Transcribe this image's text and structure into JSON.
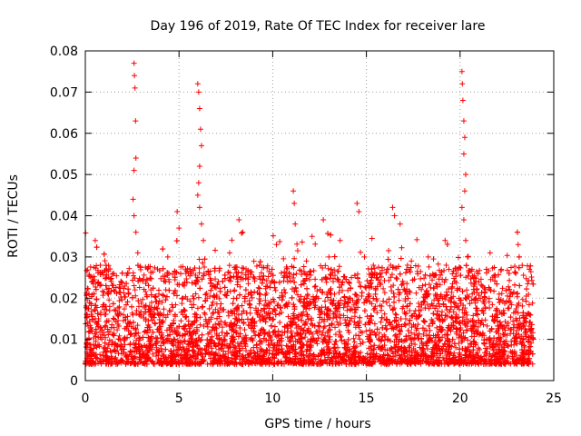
{
  "chart_data": {
    "type": "scatter",
    "title": "Day 196 of 2019, Rate Of TEC Index for receiver lare",
    "xlabel": "GPS time / hours",
    "ylabel": "ROTI / TECUs",
    "xlim": [
      0,
      25
    ],
    "ylim": [
      0,
      0.08
    ],
    "xticks": [
      0,
      5,
      10,
      15,
      20,
      25
    ],
    "yticks": [
      0,
      0.01,
      0.02,
      0.03,
      0.04,
      0.05,
      0.06,
      0.07,
      0.08
    ],
    "xtick_labels": [
      "0",
      "5",
      "10",
      "15",
      "20",
      "25"
    ],
    "ytick_labels": [
      "0",
      "0.01",
      "0.02",
      "0.03",
      "0.04",
      "0.05",
      "0.06",
      "0.07",
      "0.08"
    ],
    "grid": true,
    "marker": "+",
    "color": "#ff0000",
    "series": [
      {
        "name": "ROTI",
        "description_of_density": "dense band between ~0.004 and ~0.03 over 0–24 h",
        "points": [
          [
            0.1,
            0.008
          ],
          [
            0.2,
            0.021
          ],
          [
            0.3,
            0.012
          ],
          [
            0.5,
            0.006
          ],
          [
            0.7,
            0.015
          ],
          [
            0.8,
            0.028
          ],
          [
            1.0,
            0.011
          ],
          [
            1.3,
            0.018
          ],
          [
            1.6,
            0.007
          ],
          [
            1.9,
            0.024
          ],
          [
            2.2,
            0.013
          ],
          [
            2.4,
            0.009
          ],
          [
            2.6,
            0.077
          ],
          [
            2.62,
            0.074
          ],
          [
            2.65,
            0.071
          ],
          [
            2.68,
            0.063
          ],
          [
            2.7,
            0.054
          ],
          [
            2.6,
            0.051
          ],
          [
            2.55,
            0.044
          ],
          [
            2.6,
            0.04
          ],
          [
            2.7,
            0.036
          ],
          [
            2.8,
            0.031
          ],
          [
            2.9,
            0.016
          ],
          [
            3.2,
            0.012
          ],
          [
            3.5,
            0.022
          ],
          [
            3.8,
            0.008
          ],
          [
            4.1,
            0.019
          ],
          [
            4.4,
            0.03
          ],
          [
            4.7,
            0.014
          ],
          [
            4.9,
            0.041
          ],
          [
            5.0,
            0.037
          ],
          [
            5.2,
            0.011
          ],
          [
            5.5,
            0.026
          ],
          [
            5.8,
            0.009
          ],
          [
            6.0,
            0.072
          ],
          [
            6.05,
            0.07
          ],
          [
            6.1,
            0.066
          ],
          [
            6.15,
            0.061
          ],
          [
            6.2,
            0.057
          ],
          [
            6.1,
            0.052
          ],
          [
            6.05,
            0.048
          ],
          [
            6.0,
            0.045
          ],
          [
            6.1,
            0.042
          ],
          [
            6.2,
            0.038
          ],
          [
            6.3,
            0.034
          ],
          [
            6.5,
            0.02
          ],
          [
            6.8,
            0.013
          ],
          [
            7.1,
            0.024
          ],
          [
            7.4,
            0.01
          ],
          [
            7.7,
            0.031
          ],
          [
            7.9,
            0.017
          ],
          [
            8.2,
            0.039
          ],
          [
            8.4,
            0.036
          ],
          [
            8.7,
            0.021
          ],
          [
            9.0,
            0.012
          ],
          [
            9.3,
            0.028
          ],
          [
            9.6,
            0.007
          ],
          [
            9.9,
            0.019
          ],
          [
            10.2,
            0.033
          ],
          [
            10.5,
            0.011
          ],
          [
            10.8,
            0.024
          ],
          [
            11.1,
            0.046
          ],
          [
            11.15,
            0.043
          ],
          [
            11.2,
            0.038
          ],
          [
            11.5,
            0.016
          ],
          [
            11.8,
            0.029
          ],
          [
            12.1,
            0.035
          ],
          [
            12.4,
            0.012
          ],
          [
            12.7,
            0.039
          ],
          [
            13.0,
            0.03
          ],
          [
            13.3,
            0.021
          ],
          [
            13.6,
            0.034
          ],
          [
            13.9,
            0.009
          ],
          [
            14.2,
            0.025
          ],
          [
            14.5,
            0.043
          ],
          [
            14.6,
            0.041
          ],
          [
            14.9,
            0.03
          ],
          [
            15.2,
            0.014
          ],
          [
            15.5,
            0.022
          ],
          [
            15.8,
            0.008
          ],
          [
            16.1,
            0.027
          ],
          [
            16.4,
            0.042
          ],
          [
            16.5,
            0.04
          ],
          [
            16.8,
            0.038
          ],
          [
            17.1,
            0.015
          ],
          [
            17.4,
            0.029
          ],
          [
            17.7,
            0.011
          ],
          [
            18.0,
            0.023
          ],
          [
            18.3,
            0.03
          ],
          [
            18.6,
            0.006
          ],
          [
            18.9,
            0.018
          ],
          [
            19.2,
            0.034
          ],
          [
            19.5,
            0.012
          ],
          [
            19.8,
            0.026
          ],
          [
            20.1,
            0.075
          ],
          [
            20.12,
            0.072
          ],
          [
            20.15,
            0.068
          ],
          [
            20.2,
            0.063
          ],
          [
            20.25,
            0.059
          ],
          [
            20.2,
            0.055
          ],
          [
            20.3,
            0.05
          ],
          [
            20.25,
            0.046
          ],
          [
            20.1,
            0.042
          ],
          [
            20.2,
            0.039
          ],
          [
            20.3,
            0.034
          ],
          [
            20.4,
            0.03
          ],
          [
            20.7,
            0.013
          ],
          [
            21.0,
            0.024
          ],
          [
            21.3,
            0.009
          ],
          [
            21.6,
            0.031
          ],
          [
            21.9,
            0.017
          ],
          [
            22.2,
            0.027
          ],
          [
            22.5,
            0.011
          ],
          [
            22.8,
            0.021
          ],
          [
            23.1,
            0.033
          ],
          [
            23.4,
            0.014
          ],
          [
            23.7,
            0.027
          ],
          [
            23.9,
            0.01
          ]
        ]
      }
    ]
  }
}
